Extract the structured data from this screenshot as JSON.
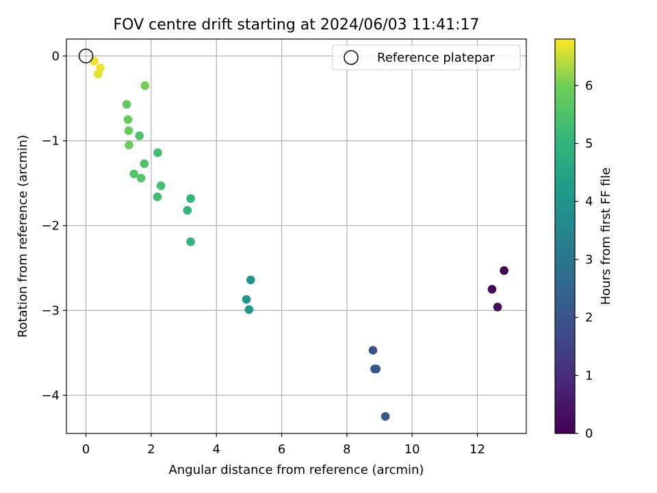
{
  "chart_data": {
    "type": "scatter",
    "title": "FOV centre drift starting at 2024/06/03 11:41:17",
    "xlabel": "Angular distance from reference (arcmin)",
    "ylabel": "Rotation from reference (arcmin)",
    "xlim": [
      -0.6,
      13.5
    ],
    "ylim": [
      -4.45,
      0.2
    ],
    "xticks": [
      0,
      2,
      4,
      6,
      8,
      10,
      12
    ],
    "yticks": [
      0,
      -1,
      -2,
      -3,
      -4
    ],
    "xtick_labels": [
      "0",
      "2",
      "4",
      "6",
      "8",
      "10",
      "12"
    ],
    "ytick_labels": [
      "0",
      "−1",
      "−2",
      "−3",
      "−4"
    ],
    "grid": true,
    "legend": {
      "placement": "top-right",
      "entries": [
        "Reference platepar"
      ]
    },
    "reference_point": {
      "x": 0,
      "y": 0
    },
    "colormap": "viridis",
    "colorbar": {
      "label": "Hours from first FF file",
      "range": [
        0,
        6.8
      ],
      "ticks": [
        0,
        1,
        2,
        3,
        4,
        5,
        6
      ],
      "tick_labels": [
        "0",
        "1",
        "2",
        "3",
        "4",
        "5",
        "6"
      ]
    },
    "points": [
      {
        "x": 12.82,
        "y": -2.53,
        "c": 0.0
      },
      {
        "x": 12.45,
        "y": -2.75,
        "c": 0.1
      },
      {
        "x": 12.62,
        "y": -2.96,
        "c": 0.2
      },
      {
        "x": 8.8,
        "y": -3.47,
        "c": 2.0
      },
      {
        "x": 8.85,
        "y": -3.69,
        "c": 2.05
      },
      {
        "x": 8.9,
        "y": -3.69,
        "c": 2.1
      },
      {
        "x": 9.18,
        "y": -4.25,
        "c": 2.15
      },
      {
        "x": 5.05,
        "y": -2.64,
        "c": 4.0
      },
      {
        "x": 4.92,
        "y": -2.87,
        "c": 4.05
      },
      {
        "x": 5.0,
        "y": -2.99,
        "c": 4.1
      },
      {
        "x": 3.21,
        "y": -1.68,
        "c": 5.0
      },
      {
        "x": 3.11,
        "y": -1.82,
        "c": 5.05
      },
      {
        "x": 3.21,
        "y": -2.19,
        "c": 5.0
      },
      {
        "x": 2.2,
        "y": -1.14,
        "c": 5.3
      },
      {
        "x": 2.3,
        "y": -1.53,
        "c": 5.35
      },
      {
        "x": 2.19,
        "y": -1.66,
        "c": 5.3
      },
      {
        "x": 1.79,
        "y": -1.27,
        "c": 5.5
      },
      {
        "x": 1.64,
        "y": -0.94,
        "c": 5.5
      },
      {
        "x": 1.47,
        "y": -1.39,
        "c": 5.6
      },
      {
        "x": 1.69,
        "y": -1.44,
        "c": 5.6
      },
      {
        "x": 1.25,
        "y": -0.57,
        "c": 5.8
      },
      {
        "x": 1.29,
        "y": -0.75,
        "c": 5.85
      },
      {
        "x": 1.31,
        "y": -0.88,
        "c": 5.85
      },
      {
        "x": 1.32,
        "y": -1.05,
        "c": 5.9
      },
      {
        "x": 1.81,
        "y": -0.35,
        "c": 6.0
      },
      {
        "x": 0.25,
        "y": -0.06,
        "c": 6.7
      },
      {
        "x": 0.44,
        "y": -0.14,
        "c": 6.7
      },
      {
        "x": 0.37,
        "y": -0.21,
        "c": 6.65
      }
    ]
  }
}
